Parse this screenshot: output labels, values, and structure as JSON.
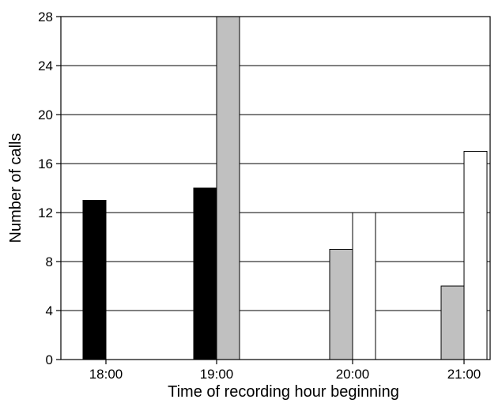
{
  "chart_data": {
    "type": "bar",
    "title": "",
    "xlabel": "Time of recording hour beginning",
    "ylabel": "Number of calls",
    "ylim": [
      0,
      28
    ],
    "yticks": [
      0,
      4,
      8,
      12,
      16,
      20,
      24,
      28
    ],
    "grid": true,
    "legend": "none",
    "categories": [
      "18:00",
      "19:00",
      "20:00",
      "21:00"
    ],
    "series": [
      {
        "color": "#000000",
        "values": [
          13,
          14,
          null,
          null
        ]
      },
      {
        "color": "#c0c0c0",
        "values": [
          null,
          28,
          9,
          6
        ]
      },
      {
        "color": "#ffffff",
        "values": [
          null,
          null,
          12,
          17
        ]
      }
    ]
  }
}
